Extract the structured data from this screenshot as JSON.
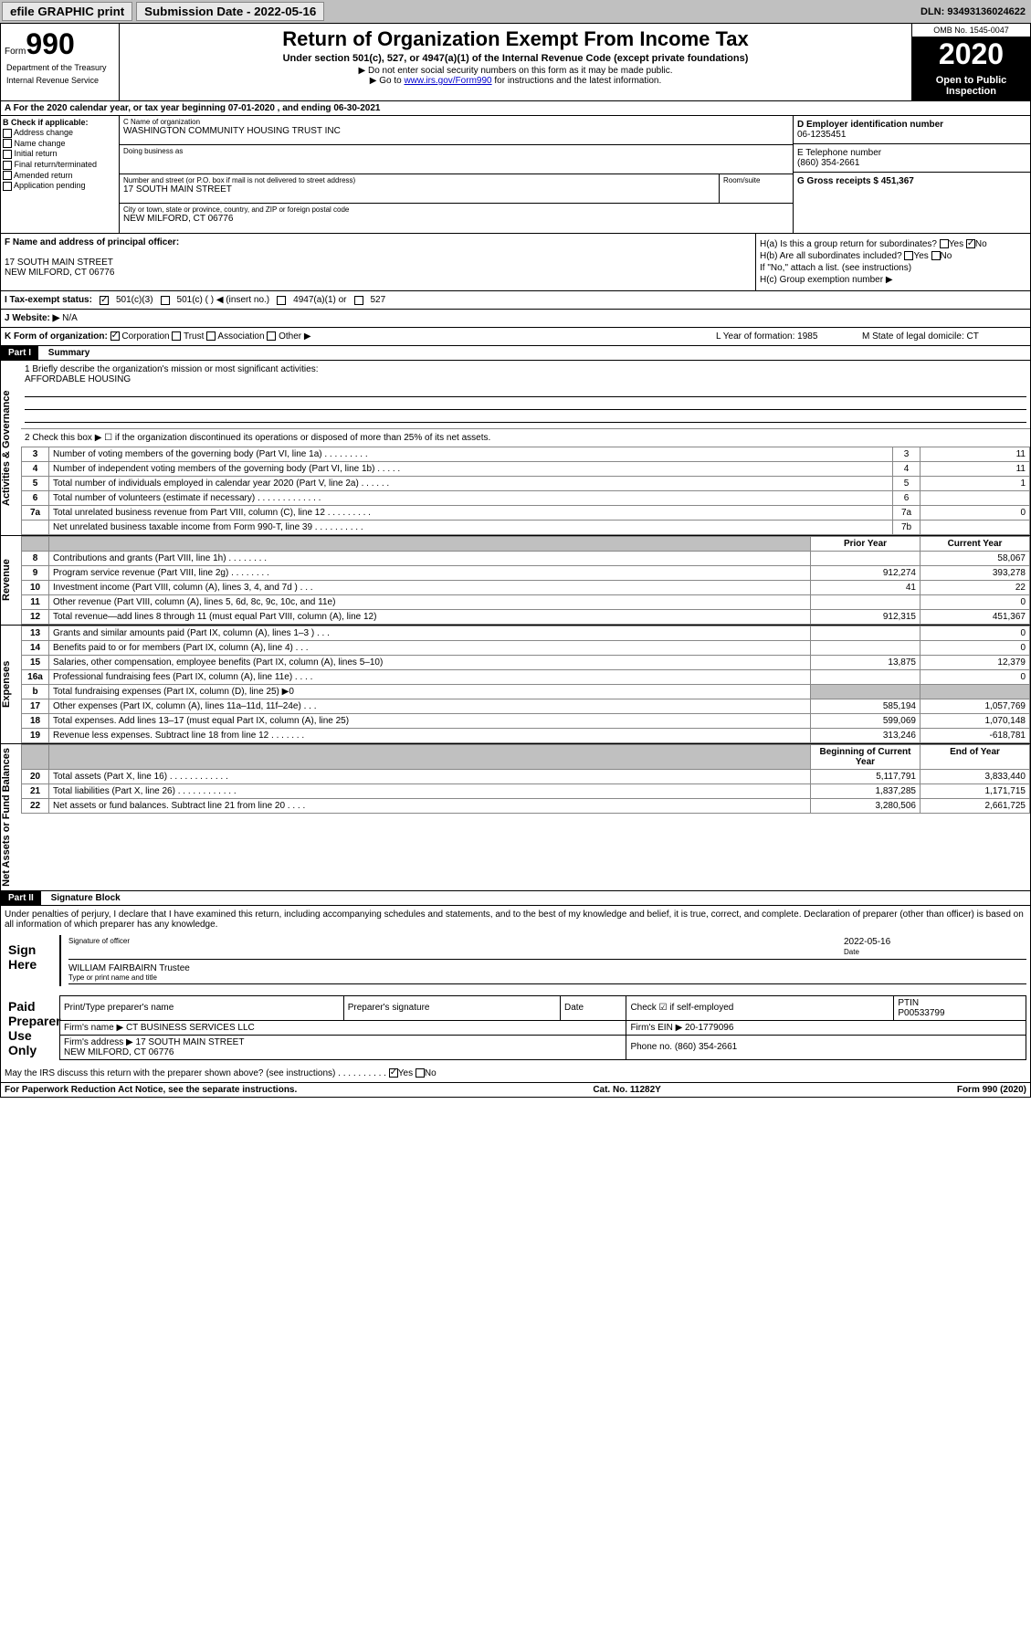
{
  "topbar": {
    "efile_label": "efile GRAPHIC print",
    "submission_label": "Submission Date - 2022-05-16",
    "dln": "DLN: 93493136024622"
  },
  "header": {
    "form_label": "Form",
    "form_number": "990",
    "dept1": "Department of the Treasury",
    "dept2": "Internal Revenue Service",
    "title": "Return of Organization Exempt From Income Tax",
    "subtitle": "Under section 501(c), 527, or 4947(a)(1) of the Internal Revenue Code (except private foundations)",
    "note1": "▶ Do not enter social security numbers on this form as it may be made public.",
    "note2_prefix": "▶ Go to ",
    "note2_link": "www.irs.gov/Form990",
    "note2_suffix": " for instructions and the latest information.",
    "omb": "OMB No. 1545-0047",
    "year": "2020",
    "open_public": "Open to Public Inspection"
  },
  "period": {
    "text": "A For the 2020 calendar year, or tax year beginning 07-01-2020   , and ending 06-30-2021"
  },
  "sectionB": {
    "label": "B Check if applicable:",
    "options": [
      "Address change",
      "Name change",
      "Initial return",
      "Final return/terminated",
      "Amended return",
      "Application pending"
    ]
  },
  "orgInfo": {
    "name_label": "C Name of organization",
    "name": "WASHINGTON COMMUNITY HOUSING TRUST INC",
    "dba_label": "Doing business as",
    "dba": "",
    "street_label": "Number and street (or P.O. box if mail is not delivered to street address)",
    "street": "17 SOUTH MAIN STREET",
    "room_label": "Room/suite",
    "city_label": "City or town, state or province, country, and ZIP or foreign postal code",
    "city": "NEW MILFORD, CT  06776"
  },
  "rightInfo": {
    "ein_label": "D Employer identification number",
    "ein": "06-1235451",
    "phone_label": "E Telephone number",
    "phone": "(860) 354-2661",
    "gross_label": "G Gross receipts $ 451,367"
  },
  "sectionF": {
    "label": "F Name and address of principal officer:",
    "addr1": "17 SOUTH MAIN STREET",
    "addr2": "NEW MILFORD, CT  06776"
  },
  "sectionH": {
    "ha_label": "H(a)  Is this a group return for subordinates?",
    "ha_yes": "Yes",
    "ha_no": "No",
    "hb_label": "H(b)  Are all subordinates included?",
    "hb_note": "If \"No,\" attach a list. (see instructions)",
    "hc_label": "H(c)  Group exemption number ▶"
  },
  "taxStatus": {
    "label": "I   Tax-exempt status:",
    "opt1": "501(c)(3)",
    "opt2": "501(c) (  ) ◀ (insert no.)",
    "opt3": "4947(a)(1) or",
    "opt4": "527"
  },
  "website": {
    "label": "J   Website: ▶",
    "value": "N/A"
  },
  "sectionK": {
    "label": "K Form of organization:",
    "opts": [
      "Corporation",
      "Trust",
      "Association",
      "Other ▶"
    ],
    "l_label": "L Year of formation: 1985",
    "m_label": "M State of legal domicile: CT"
  },
  "partI": {
    "header": "Part I",
    "title": "Summary",
    "mission_label": "1  Briefly describe the organization's mission or most significant activities:",
    "mission": "AFFORDABLE HOUSING",
    "line2": "2  Check this box ▶ ☐  if the organization discontinued its operations or disposed of more than 25% of its net assets.",
    "vert_gov": "Activities & Governance",
    "vert_rev": "Revenue",
    "vert_exp": "Expenses",
    "vert_net": "Net Assets or Fund Balances",
    "rows_gov": [
      {
        "n": "3",
        "t": "Number of voting members of the governing body (Part VI, line 1a)   .    .    .    .    .    .    .    .    .",
        "box": "3",
        "v": "11"
      },
      {
        "n": "4",
        "t": "Number of independent voting members of the governing body (Part VI, line 1b)   .    .    .    .    .",
        "box": "4",
        "v": "11"
      },
      {
        "n": "5",
        "t": "Total number of individuals employed in calendar year 2020 (Part V, line 2a)   .    .    .    .    .    .",
        "box": "5",
        "v": "1"
      },
      {
        "n": "6",
        "t": "Total number of volunteers (estimate if necessary)   .    .    .    .    .    .    .    .    .    .    .    .    .",
        "box": "6",
        "v": ""
      },
      {
        "n": "7a",
        "t": "Total unrelated business revenue from Part VIII, column (C), line 12   .    .    .    .    .    .    .    .    .",
        "box": "7a",
        "v": "0"
      },
      {
        "n": "",
        "t": "Net unrelated business taxable income from Form 990-T, line 39   .    .    .    .    .    .    .    .    .    .",
        "box": "7b",
        "v": ""
      }
    ],
    "col_prior": "Prior Year",
    "col_current": "Current Year",
    "rows_rev": [
      {
        "n": "8",
        "t": "Contributions and grants (Part VIII, line 1h)   .    .    .    .    .    .    .    .",
        "p": "",
        "c": "58,067"
      },
      {
        "n": "9",
        "t": "Program service revenue (Part VIII, line 2g)   .    .    .    .    .    .    .    .",
        "p": "912,274",
        "c": "393,278"
      },
      {
        "n": "10",
        "t": "Investment income (Part VIII, column (A), lines 3, 4, and 7d )   .    .    .",
        "p": "41",
        "c": "22"
      },
      {
        "n": "11",
        "t": "Other revenue (Part VIII, column (A), lines 5, 6d, 8c, 9c, 10c, and 11e)",
        "p": "",
        "c": "0"
      },
      {
        "n": "12",
        "t": "Total revenue—add lines 8 through 11 (must equal Part VIII, column (A), line 12)",
        "p": "912,315",
        "c": "451,367"
      }
    ],
    "rows_exp": [
      {
        "n": "13",
        "t": "Grants and similar amounts paid (Part IX, column (A), lines 1–3 )   .    .    .",
        "p": "",
        "c": "0"
      },
      {
        "n": "14",
        "t": "Benefits paid to or for members (Part IX, column (A), line 4)   .    .    .",
        "p": "",
        "c": "0"
      },
      {
        "n": "15",
        "t": "Salaries, other compensation, employee benefits (Part IX, column (A), lines 5–10)",
        "p": "13,875",
        "c": "12,379"
      },
      {
        "n": "16a",
        "t": "Professional fundraising fees (Part IX, column (A), line 11e)   .    .    .    .",
        "p": "",
        "c": "0"
      },
      {
        "n": "b",
        "t": "Total fundraising expenses (Part IX, column (D), line 25) ▶0",
        "p": "",
        "c": "",
        "shaded": true
      },
      {
        "n": "17",
        "t": "Other expenses (Part IX, column (A), lines 11a–11d, 11f–24e)   .    .    .",
        "p": "585,194",
        "c": "1,057,769"
      },
      {
        "n": "18",
        "t": "Total expenses. Add lines 13–17 (must equal Part IX, column (A), line 25)",
        "p": "599,069",
        "c": "1,070,148"
      },
      {
        "n": "19",
        "t": "Revenue less expenses. Subtract line 18 from line 12   .    .    .    .    .    .    .",
        "p": "313,246",
        "c": "-618,781"
      }
    ],
    "col_begin": "Beginning of Current Year",
    "col_end": "End of Year",
    "rows_net": [
      {
        "n": "20",
        "t": "Total assets (Part X, line 16)   .    .    .    .    .    .    .    .    .    .    .    .",
        "p": "5,117,791",
        "c": "3,833,440"
      },
      {
        "n": "21",
        "t": "Total liabilities (Part X, line 26)   .    .    .    .    .    .    .    .    .    .    .    .",
        "p": "1,837,285",
        "c": "1,171,715"
      },
      {
        "n": "22",
        "t": "Net assets or fund balances. Subtract line 21 from line 20   .    .    .    .",
        "p": "3,280,506",
        "c": "2,661,725"
      }
    ]
  },
  "partII": {
    "header": "Part II",
    "title": "Signature Block",
    "perjury": "Under penalties of perjury, I declare that I have examined this return, including accompanying schedules and statements, and to the best of my knowledge and belief, it is true, correct, and complete. Declaration of preparer (other than officer) is based on all information of which preparer has any knowledge.",
    "sign_here": "Sign Here",
    "sig_officer_lbl": "Signature of officer",
    "date_lbl": "Date",
    "date_val": "2022-05-16",
    "name_title": "WILLIAM FAIRBAIRN  Trustee",
    "name_title_lbl": "Type or print name and title",
    "paid_prep": "Paid Preparer Use Only",
    "prep_name_lbl": "Print/Type preparer's name",
    "prep_sig_lbl": "Preparer's signature",
    "prep_date_lbl": "Date",
    "self_emp": "Check ☑ if self-employed",
    "ptin_lbl": "PTIN",
    "ptin": "P00533799",
    "firm_name_lbl": "Firm's name   ▶",
    "firm_name": "CT BUSINESS SERVICES LLC",
    "firm_ein_lbl": "Firm's EIN ▶",
    "firm_ein": "20-1779096",
    "firm_addr_lbl": "Firm's address ▶",
    "firm_addr1": "17 SOUTH MAIN STREET",
    "firm_addr2": "NEW MILFORD, CT  06776",
    "firm_phone_lbl": "Phone no.",
    "firm_phone": "(860) 354-2661",
    "discuss": "May the IRS discuss this return with the preparer shown above? (see instructions)   .    .    .    .    .    .    .    .    .    .",
    "discuss_yes": "Yes",
    "discuss_no": "No"
  },
  "footer": {
    "paperwork": "For Paperwork Reduction Act Notice, see the separate instructions.",
    "cat": "Cat. No. 11282Y",
    "form": "Form 990 (2020)"
  }
}
